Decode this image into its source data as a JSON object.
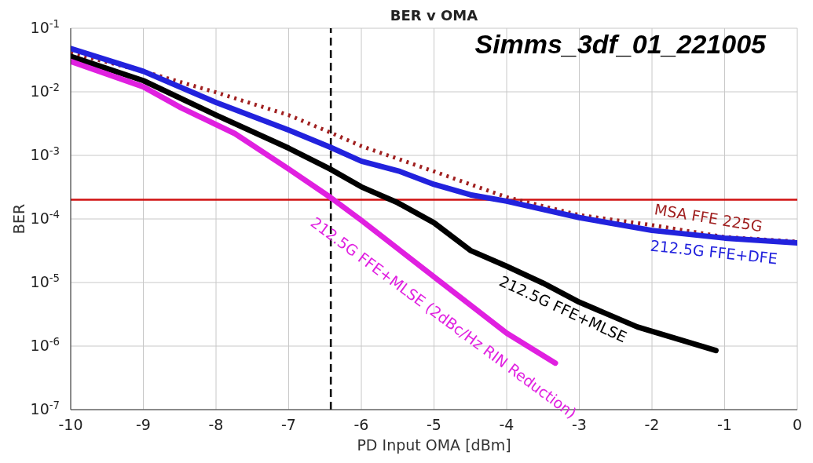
{
  "chart_data": {
    "type": "line",
    "title": "BER v OMA",
    "xlabel": "PD Input OMA [dBm]",
    "ylabel": "BER",
    "annotations": [
      "Simms_3df_01_221005"
    ],
    "xlim": [
      -10,
      0
    ],
    "xticks": [
      -10,
      -9,
      -8,
      -7,
      -6,
      -5,
      -4,
      -3,
      -2,
      -1,
      0
    ],
    "ylim": [
      1e-07,
      0.1
    ],
    "yticks": [
      {
        "value": 1e-07,
        "label": "10$^{-7}$"
      },
      {
        "value": 1e-06,
        "label": "10$^{-6}$"
      },
      {
        "value": 1e-05,
        "label": "10$^{-5}$"
      },
      {
        "value": 0.0001,
        "label": "10$^{-4}$"
      },
      {
        "value": 0.001,
        "label": "10$^{-3}$"
      },
      {
        "value": 0.01,
        "label": "10$^{-2}$"
      },
      {
        "value": 0.1,
        "label": "10$^{-1}$"
      }
    ],
    "log": "y",
    "grid": true,
    "marker": "none",
    "ref_lines": [
      {
        "axis": "y",
        "value": 0.0002,
        "color": "#d01010",
        "line_style": "solid"
      },
      {
        "axis": "x",
        "value": -6.42,
        "color": "#000000",
        "line_style": "dashed"
      }
    ],
    "series": [
      {
        "name": "MSA FFE 225G",
        "color": "#a02020",
        "line_style": "dotted",
        "x": [
          -10,
          -9,
          -8,
          -7,
          -6.43,
          -6,
          -5,
          -4,
          -3,
          -2,
          -1,
          0
        ],
        "values": [
          0.041,
          0.021,
          0.0098,
          0.0043,
          0.0023,
          0.0014,
          0.00056,
          0.00022,
          0.000115,
          8e-05,
          5.2e-05,
          4.4e-05
        ]
      },
      {
        "name": "212.5G FFE+DFE",
        "color": "#2222dd",
        "line_style": "solid",
        "x": [
          -10,
          -9,
          -8,
          -7,
          -6.43,
          -6,
          -5.47,
          -5,
          -4.5,
          -4,
          -3,
          -2,
          -1,
          0
        ],
        "values": [
          0.048,
          0.021,
          0.0068,
          0.0025,
          0.00135,
          0.00081,
          0.00056,
          0.00035,
          0.00024,
          0.00019,
          0.000105,
          6.6e-05,
          5e-05,
          4.2e-05
        ]
      },
      {
        "name": "212.5G FFE+MLSE",
        "color": "#000000",
        "line_style": "solid",
        "x": [
          -10,
          -9,
          -8,
          -7,
          -6.43,
          -6,
          -5.5,
          -5,
          -4.5,
          -4,
          -3.5,
          -3,
          -2.2,
          -1.12
        ],
        "values": [
          0.036,
          0.015,
          0.0043,
          0.0013,
          0.00061,
          0.00032,
          0.00018,
          8.7e-05,
          3.2e-05,
          1.8e-05,
          9.8e-06,
          4.9e-06,
          2e-06,
          8.5e-07
        ]
      },
      {
        "name": "212.5G FFE+MLSE (2dBc/Hz RIN Reduction)",
        "color": "#e020e0",
        "line_style": "solid",
        "x": [
          -10,
          -9,
          -8.48,
          -7.74,
          -7,
          -6.43,
          -6,
          -5,
          -4,
          -3.33
        ],
        "values": [
          0.03,
          0.012,
          0.0056,
          0.0022,
          0.00061,
          0.00022,
          9.5e-05,
          1.23e-05,
          1.6e-06,
          5.4e-07
        ]
      }
    ]
  }
}
